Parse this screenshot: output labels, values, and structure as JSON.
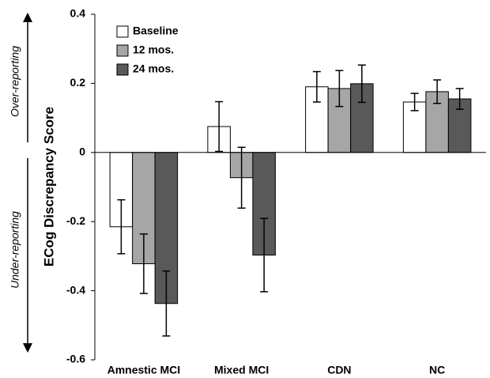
{
  "chart_data": {
    "type": "bar",
    "y_label": "ECog Discrepancy Score",
    "annotations": [
      "Over-reporting",
      "Under-reporting"
    ],
    "categories": [
      "Amnestic MCI",
      "Mixed MCI",
      "CDN",
      "NC"
    ],
    "series": [
      {
        "name": "Baseline",
        "color": "#ffffff",
        "values": [
          -0.215,
          0.075,
          0.19,
          0.146
        ],
        "errors": [
          0.078,
          0.072,
          0.044,
          0.025
        ]
      },
      {
        "name": "12 mos.",
        "color": "#a6a6a6",
        "values": [
          -0.322,
          -0.073,
          0.185,
          0.176
        ],
        "errors": [
          0.086,
          0.088,
          0.052,
          0.034
        ]
      },
      {
        "name": "24 mos.",
        "color": "#595959",
        "values": [
          -0.437,
          -0.297,
          0.199,
          0.155
        ],
        "errors": [
          0.094,
          0.106,
          0.054,
          0.03
        ]
      }
    ],
    "ylim": [
      -0.6,
      0.4
    ],
    "yticks": [
      -0.6,
      -0.4,
      -0.2,
      0,
      0.2,
      0.4
    ],
    "grid": false,
    "legend": "upper-left"
  }
}
